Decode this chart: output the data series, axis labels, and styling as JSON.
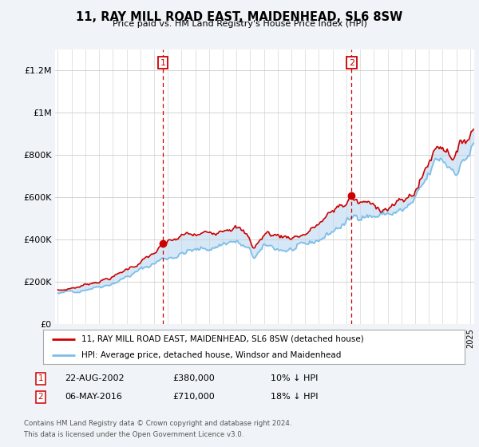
{
  "title": "11, RAY MILL ROAD EAST, MAIDENHEAD, SL6 8SW",
  "subtitle": "Price paid vs. HM Land Registry's House Price Index (HPI)",
  "hpi_label": "HPI: Average price, detached house, Windsor and Maidenhead",
  "property_label": "11, RAY MILL ROAD EAST, MAIDENHEAD, SL6 8SW (detached house)",
  "footer_line1": "Contains HM Land Registry data © Crown copyright and database right 2024.",
  "footer_line2": "This data is licensed under the Open Government Licence v3.0.",
  "annotation1": {
    "num": "1",
    "date": "22-AUG-2002",
    "price": "£380,000",
    "hpi": "10% ↓ HPI"
  },
  "annotation2": {
    "num": "2",
    "date": "06-MAY-2016",
    "price": "£710,000",
    "hpi": "18% ↓ HPI"
  },
  "ylim": [
    0,
    1300000
  ],
  "yticks": [
    0,
    200000,
    400000,
    600000,
    800000,
    1000000,
    1200000
  ],
  "ytick_labels": [
    "£0",
    "£200K",
    "£400K",
    "£600K",
    "£800K",
    "£1M",
    "£1.2M"
  ],
  "hpi_color": "#7bbde8",
  "fill_color": "#d6e8f7",
  "property_color": "#cc0000",
  "annotation_color": "#cc0000",
  "background_color": "#f0f4f8",
  "plot_bg_color": "#ffffff",
  "ann1_x": 2002.65,
  "ann2_x": 2016.37,
  "ann1_y_sale": 380000,
  "ann2_y_sale": 710000,
  "xlim_left": 1994.8,
  "xlim_right": 2025.3
}
